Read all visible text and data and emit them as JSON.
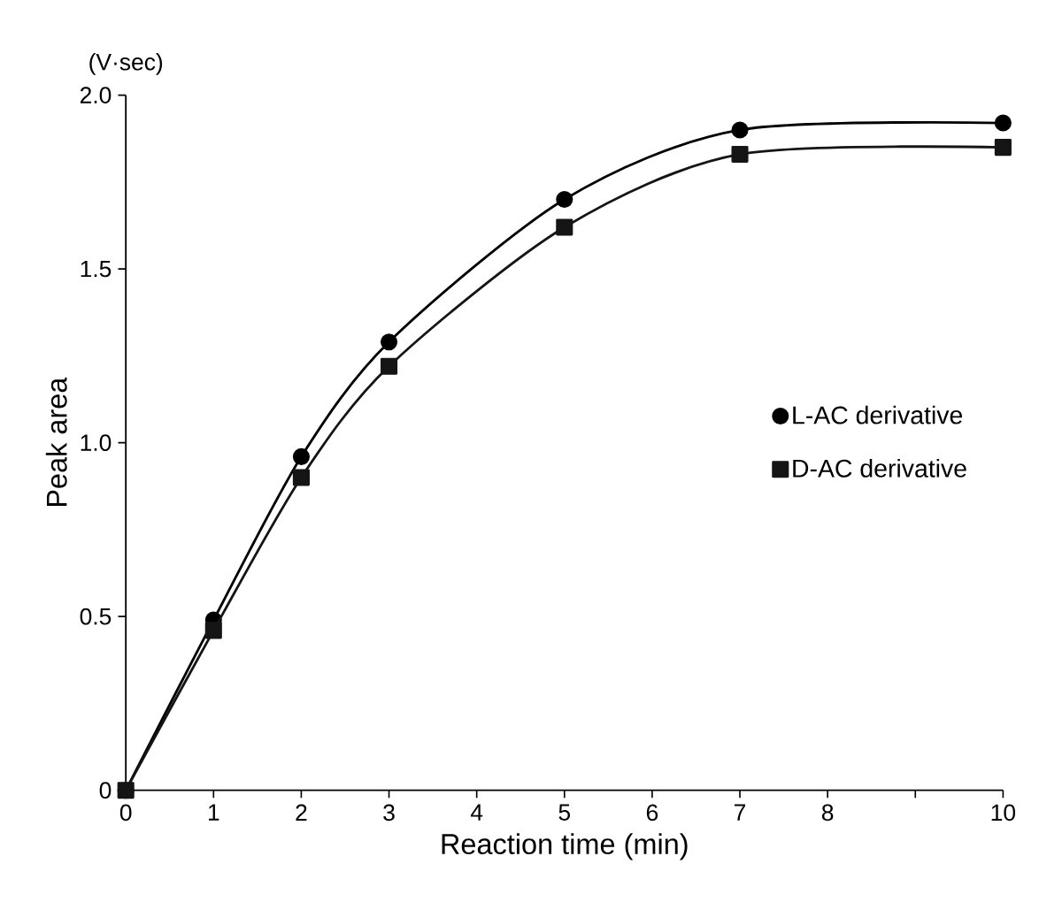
{
  "chart_data": {
    "type": "line",
    "xlabel": "Reaction time (min)",
    "ylabel": "Peak area",
    "annotations": [
      "(V·sec)"
    ],
    "x": [
      0,
      1,
      2,
      3,
      5,
      7,
      10
    ],
    "series": [
      {
        "name": "L-AC derivative",
        "color": "#000000",
        "marker": "circle",
        "values": [
          0,
          0.49,
          0.96,
          1.29,
          1.7,
          1.9,
          1.92
        ]
      },
      {
        "name": "D-AC derivative",
        "color": "#151515",
        "marker": "square",
        "values": [
          0,
          0.46,
          0.9,
          1.22,
          1.62,
          1.83,
          1.85
        ]
      }
    ],
    "xlim": [
      0,
      10
    ],
    "ylim": [
      0,
      2.0
    ],
    "xticks": [
      0,
      1,
      2,
      3,
      4,
      5,
      6,
      7,
      8,
      {
        "value": 9,
        "label": null
      },
      10
    ],
    "yticks": [
      0,
      {
        "value": 0.5,
        "label": "0.5"
      },
      {
        "value": 1.0,
        "label": "1.0"
      },
      {
        "value": 1.5,
        "label": "1.5"
      },
      {
        "value": 2.0,
        "label": "2.0"
      }
    ],
    "legend": "right",
    "line_style": "solid",
    "grid": false
  }
}
